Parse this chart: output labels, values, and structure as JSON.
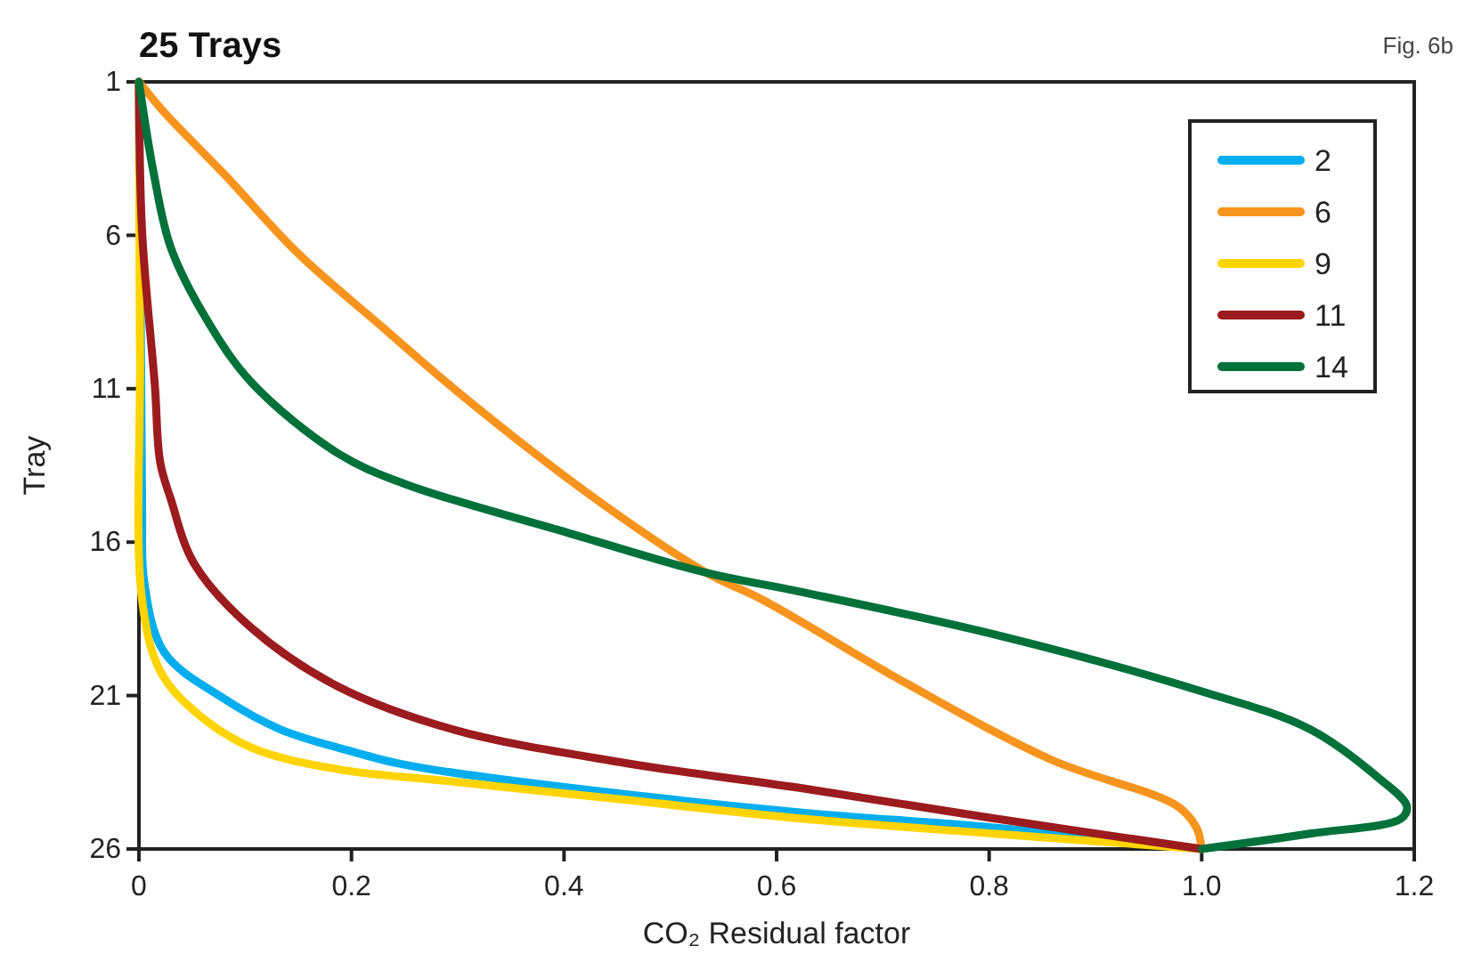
{
  "chart_data": {
    "type": "line",
    "title": "25 Trays",
    "xlabel": "CO₂ Residual factor",
    "ylabel": "Tray",
    "annotations": [
      "Fig. 6b"
    ],
    "xlim": [
      0,
      1.2
    ],
    "xticks": [
      0,
      0.2,
      0.4,
      0.6,
      0.8,
      {
        "value": 1,
        "label": "1.0"
      },
      1.2
    ],
    "ylim": [
      26,
      1
    ],
    "yticks": [
      1,
      6,
      11,
      16,
      21,
      26
    ],
    "grid": false,
    "legend": "top right",
    "marker": "none",
    "line_style": "solid",
    "series": [
      {
        "name": "2",
        "color": "#00aeef",
        "x": [
          0,
          0.002,
          0.003,
          0.005,
          0.024,
          0.08,
          0.133,
          0.198,
          0.242,
          0.274,
          0.404,
          0.62,
          0.804,
          1.0
        ],
        "values": [
          1,
          10,
          15,
          17.3,
          19.6,
          21.1,
          22.1,
          22.8,
          23.2,
          23.4,
          24.0,
          24.8,
          25.3,
          26
        ]
      },
      {
        "name": "6",
        "color": "#f7941d",
        "x": [
          0,
          0.024,
          0.08,
          0.15,
          0.226,
          0.307,
          0.43,
          0.534,
          0.588,
          0.722,
          0.859,
          0.977,
          0.995,
          1.0
        ],
        "values": [
          1,
          2.0,
          4.0,
          6.6,
          8.9,
          11.3,
          14.6,
          17.0,
          17.9,
          20.6,
          23.1,
          24.6,
          25.3,
          26
        ]
      },
      {
        "name": "9",
        "color": "#ffd400",
        "x": [
          0,
          0.001,
          0.003,
          0.02,
          0.052,
          0.106,
          0.187,
          0.295,
          0.458,
          0.62,
          0.804,
          1.0
        ],
        "values": [
          1,
          10,
          17.9,
          20.2,
          21.5,
          22.7,
          23.4,
          23.8,
          24.4,
          25.0,
          25.5,
          26
        ]
      },
      {
        "name": "11",
        "color": "#9b1b1e",
        "x": [
          0,
          0.003,
          0.015,
          0.02,
          0.03,
          0.052,
          0.106,
          0.187,
          0.295,
          0.458,
          0.62,
          0.804,
          1.0
        ],
        "values": [
          1,
          5.9,
          10.9,
          13.4,
          14.6,
          16.7,
          18.8,
          20.7,
          22.1,
          23.2,
          24.0,
          25.0,
          26
        ]
      },
      {
        "name": "14",
        "color": "#00713a",
        "x": [
          0,
          0.014,
          0.03,
          0.063,
          0.106,
          0.187,
          0.25,
          0.404,
          0.534,
          0.62,
          0.804,
          0.994,
          1.102,
          1.167,
          1.193,
          1.188,
          1.102,
          1.0
        ],
        "values": [
          1,
          4.0,
          6.4,
          8.7,
          10.8,
          13.1,
          14.1,
          15.7,
          17.0,
          17.6,
          19.0,
          20.8,
          22.1,
          23.7,
          24.6,
          25.0,
          25.5,
          26
        ]
      }
    ]
  }
}
